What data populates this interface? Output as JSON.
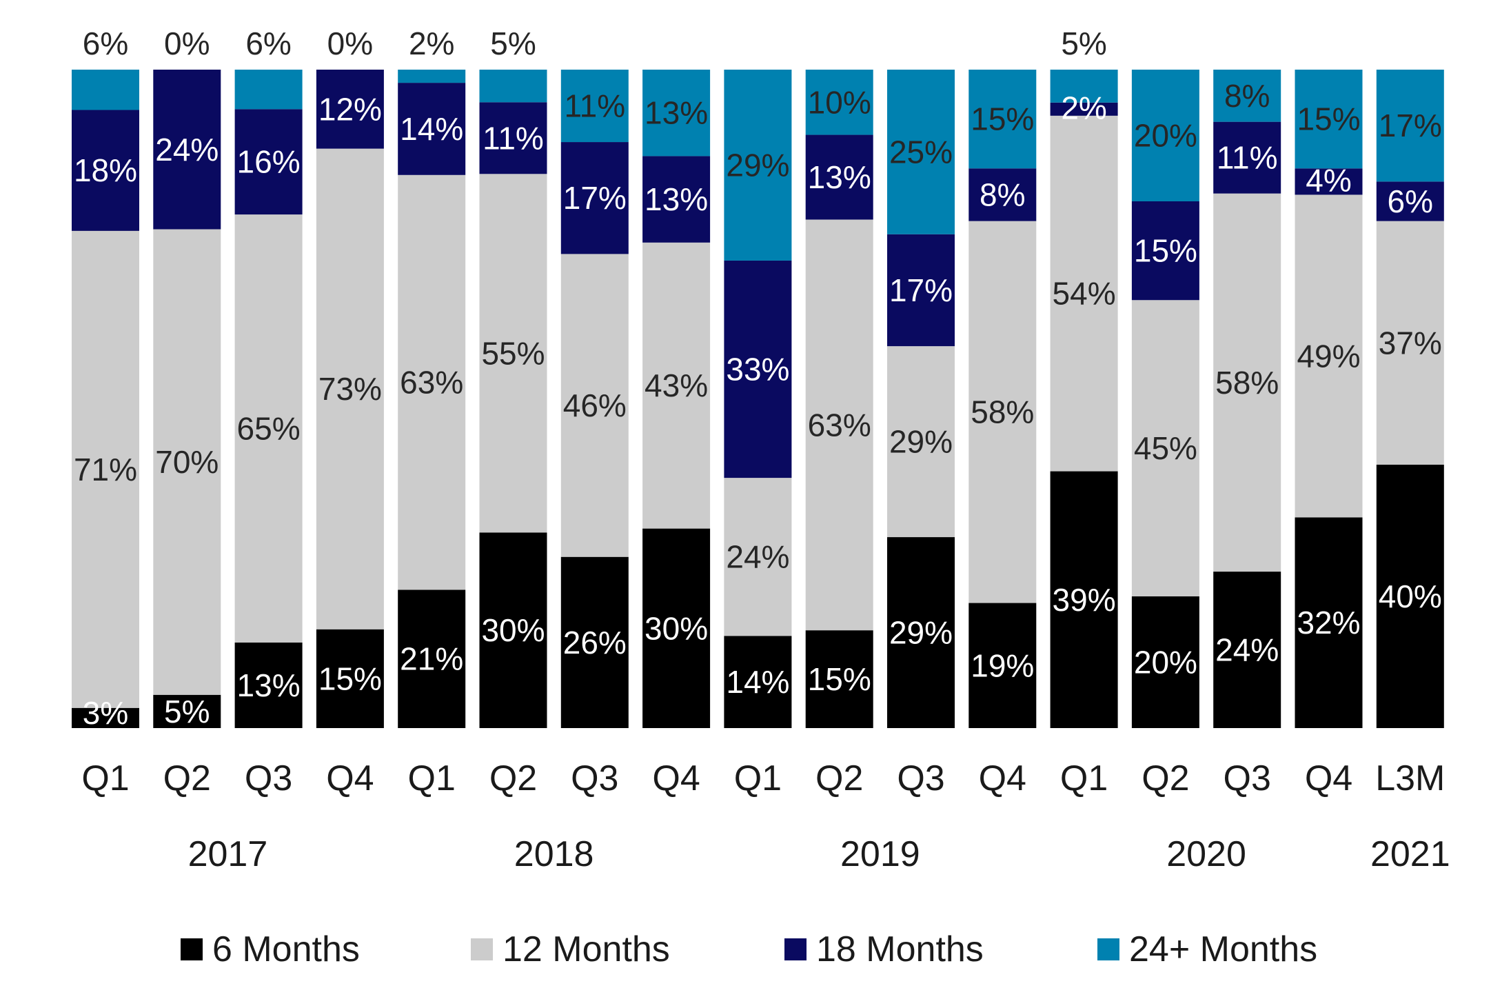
{
  "chart_data": {
    "type": "bar",
    "stacked": true,
    "normalized": true,
    "title": "",
    "xlabel": "",
    "ylabel": "",
    "ylim": [
      0,
      100
    ],
    "grid": false,
    "legend_position": "bottom",
    "value_format": "{v}%",
    "categories": [
      "Q1",
      "Q2",
      "Q3",
      "Q4",
      "Q1",
      "Q2",
      "Q3",
      "Q4",
      "Q1",
      "Q2",
      "Q3",
      "Q4",
      "Q1",
      "Q2",
      "Q3",
      "Q4",
      "L3M"
    ],
    "groups": [
      {
        "label": "2017",
        "start": 0,
        "end": 3
      },
      {
        "label": "2018",
        "start": 4,
        "end": 7
      },
      {
        "label": "2019",
        "start": 8,
        "end": 11
      },
      {
        "label": "2020",
        "start": 12,
        "end": 15
      },
      {
        "label": "2021",
        "start": 16,
        "end": 16
      }
    ],
    "series": [
      {
        "name": "6 Months",
        "color": "#000000",
        "label_color": "#ffffff",
        "values": [
          3,
          5,
          13,
          15,
          21,
          30,
          26,
          30,
          14,
          15,
          29,
          19,
          39,
          20,
          24,
          32,
          40
        ]
      },
      {
        "name": "12 Months",
        "color": "#cccccc",
        "label_color": "#262626",
        "values": [
          71,
          70,
          65,
          73,
          63,
          55,
          46,
          43,
          24,
          63,
          29,
          58,
          54,
          45,
          58,
          49,
          37
        ]
      },
      {
        "name": "18 Months",
        "color": "#0a0a60",
        "label_color": "#ffffff",
        "values": [
          18,
          24,
          16,
          12,
          14,
          11,
          17,
          13,
          33,
          13,
          17,
          8,
          2,
          15,
          11,
          4,
          6
        ]
      },
      {
        "name": "24+ Months",
        "color": "#0081b0",
        "label_color": "#262626",
        "values": [
          6,
          0,
          6,
          0,
          2,
          5,
          11,
          13,
          29,
          10,
          25,
          15,
          5,
          20,
          8,
          15,
          17
        ]
      }
    ]
  }
}
